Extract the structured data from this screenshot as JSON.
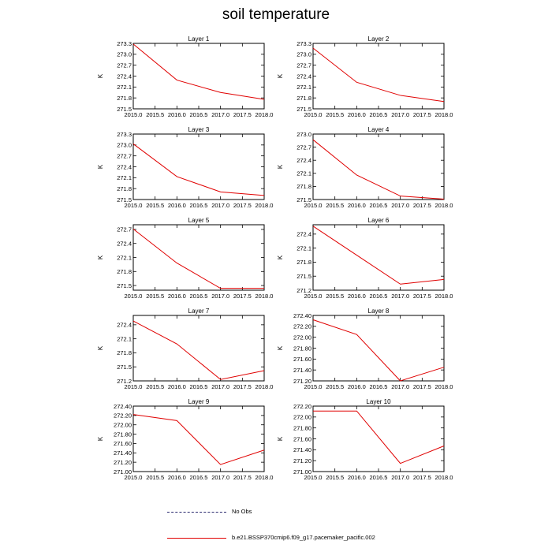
{
  "figure": {
    "title": "soil temperature",
    "colors": {
      "model_line": "#e00000",
      "obs_line": "#2a2a6e",
      "axes": "#000000"
    }
  },
  "legend": {
    "no_obs_label": "No Obs",
    "model_label": "b.e21.BSSP370cmip6.f09_g17.pacemaker_pacific.002"
  },
  "chart_data": [
    {
      "type": "line",
      "title": "Layer 1",
      "ylabel": "K",
      "x": [
        2015.0,
        2016.0,
        2017.0,
        2018.0
      ],
      "xlim": [
        2015.0,
        2018.0
      ],
      "xticks": [
        "2015.0",
        "2015.5",
        "2016.0",
        "2016.5",
        "2017.0",
        "2017.5",
        "2018.0"
      ],
      "series": [
        {
          "values": [
            273.28,
            272.29,
            271.95,
            271.76
          ]
        }
      ],
      "ylim": [
        271.5,
        273.3
      ],
      "yticks": [
        "271.5",
        "271.8",
        "272.1",
        "272.4",
        "272.7",
        "273.0",
        "273.3"
      ]
    },
    {
      "type": "line",
      "title": "Layer 2",
      "ylabel": "K",
      "x": [
        2015.0,
        2016.0,
        2017.0,
        2018.0
      ],
      "xlim": [
        2015.0,
        2018.0
      ],
      "xticks": [
        "2015.0",
        "2015.5",
        "2016.0",
        "2016.5",
        "2017.0",
        "2017.5",
        "2018.0"
      ],
      "series": [
        {
          "values": [
            273.17,
            272.23,
            271.87,
            271.7
          ]
        }
      ],
      "ylim": [
        271.5,
        273.3
      ],
      "yticks": [
        "271.5",
        "271.8",
        "272.1",
        "272.4",
        "272.7",
        "273.0",
        "273.3"
      ]
    },
    {
      "type": "line",
      "title": "Layer 3",
      "ylabel": "K",
      "x": [
        2015.0,
        2016.0,
        2017.0,
        2018.0
      ],
      "xlim": [
        2015.0,
        2018.0
      ],
      "xticks": [
        "2015.0",
        "2015.5",
        "2016.0",
        "2016.5",
        "2017.0",
        "2017.5",
        "2018.0"
      ],
      "series": [
        {
          "values": [
            273.03,
            272.13,
            271.71,
            271.61
          ]
        }
      ],
      "ylim": [
        271.5,
        273.3
      ],
      "yticks": [
        "271.5",
        "271.8",
        "272.1",
        "272.4",
        "272.7",
        "273.0",
        "273.3"
      ]
    },
    {
      "type": "line",
      "title": "Layer 4",
      "ylabel": "K",
      "x": [
        2015.0,
        2016.0,
        2017.0,
        2018.0
      ],
      "xlim": [
        2015.0,
        2018.0
      ],
      "xticks": [
        "2015.0",
        "2015.5",
        "2016.0",
        "2016.5",
        "2017.0",
        "2017.5",
        "2018.0"
      ],
      "series": [
        {
          "values": [
            272.87,
            272.06,
            271.58,
            271.51
          ]
        }
      ],
      "ylim": [
        271.5,
        273.0
      ],
      "yticks": [
        "271.5",
        "271.8",
        "272.1",
        "272.4",
        "272.7",
        "273.0"
      ]
    },
    {
      "type": "line",
      "title": "Layer 5",
      "ylabel": "K",
      "x": [
        2015.0,
        2016.0,
        2017.0,
        2018.0
      ],
      "xlim": [
        2015.0,
        2018.0
      ],
      "xticks": [
        "2015.0",
        "2015.5",
        "2016.0",
        "2016.5",
        "2017.0",
        "2017.5",
        "2018.0"
      ],
      "series": [
        {
          "values": [
            272.71,
            271.98,
            271.44,
            271.44
          ]
        }
      ],
      "ylim": [
        271.4,
        272.8
      ],
      "yticks": [
        "271.5",
        "271.8",
        "272.1",
        "272.4",
        "272.7"
      ]
    },
    {
      "type": "line",
      "title": "Layer 6",
      "ylabel": "K",
      "x": [
        2015.0,
        2016.0,
        2017.0,
        2018.0
      ],
      "xlim": [
        2015.0,
        2018.0
      ],
      "xticks": [
        "2015.0",
        "2015.5",
        "2016.0",
        "2016.5",
        "2017.0",
        "2017.5",
        "2018.0"
      ],
      "series": [
        {
          "values": [
            272.57,
            271.95,
            271.33,
            271.43
          ]
        }
      ],
      "ylim": [
        271.2,
        272.6
      ],
      "yticks": [
        "271.2",
        "271.5",
        "271.8",
        "272.1",
        "272.4"
      ]
    },
    {
      "type": "line",
      "title": "Layer 7",
      "ylabel": "K",
      "x": [
        2015.0,
        2016.0,
        2017.0,
        2018.0
      ],
      "xlim": [
        2015.0,
        2018.0
      ],
      "xticks": [
        "2015.0",
        "2015.5",
        "2016.0",
        "2016.5",
        "2017.0",
        "2017.5",
        "2018.0"
      ],
      "series": [
        {
          "values": [
            272.48,
            271.99,
            271.23,
            271.42
          ]
        }
      ],
      "ylim": [
        271.2,
        272.6
      ],
      "yticks": [
        "271.2",
        "271.5",
        "271.8",
        "272.1",
        "272.4"
      ]
    },
    {
      "type": "line",
      "title": "Layer 8",
      "ylabel": "K",
      "x": [
        2015.0,
        2016.0,
        2017.0,
        2018.0
      ],
      "xlim": [
        2015.0,
        2018.0
      ],
      "xticks": [
        "2015.0",
        "2015.5",
        "2016.0",
        "2016.5",
        "2017.0",
        "2017.5",
        "2018.0"
      ],
      "series": [
        {
          "values": [
            272.32,
            272.05,
            271.2,
            271.45
          ]
        }
      ],
      "ylim": [
        271.2,
        272.4
      ],
      "yticks": [
        "271.20",
        "271.40",
        "271.60",
        "271.80",
        "272.00",
        "272.20",
        "272.40"
      ]
    },
    {
      "type": "line",
      "title": "Layer 9",
      "ylabel": "K",
      "x": [
        2015.0,
        2016.0,
        2017.0,
        2018.0
      ],
      "xlim": [
        2015.0,
        2018.0
      ],
      "xticks": [
        "2015.0",
        "2015.5",
        "2016.0",
        "2016.5",
        "2017.0",
        "2017.5",
        "2018.0"
      ],
      "series": [
        {
          "values": [
            272.22,
            272.09,
            271.15,
            271.46
          ]
        }
      ],
      "ylim": [
        271.0,
        272.4
      ],
      "yticks": [
        "271.00",
        "271.20",
        "271.40",
        "271.60",
        "271.80",
        "272.00",
        "272.20",
        "272.40"
      ]
    },
    {
      "type": "line",
      "title": "Layer 10",
      "ylabel": "K",
      "x": [
        2015.0,
        2016.0,
        2017.0,
        2018.0
      ],
      "xlim": [
        2015.0,
        2018.0
      ],
      "xticks": [
        "2015.0",
        "2015.5",
        "2016.0",
        "2016.5",
        "2017.0",
        "2017.5",
        "2018.0"
      ],
      "series": [
        {
          "values": [
            272.11,
            272.11,
            271.15,
            271.47
          ]
        }
      ],
      "ylim": [
        271.0,
        272.2
      ],
      "yticks": [
        "271.00",
        "271.20",
        "271.40",
        "271.60",
        "271.80",
        "272.00",
        "272.20"
      ]
    }
  ]
}
